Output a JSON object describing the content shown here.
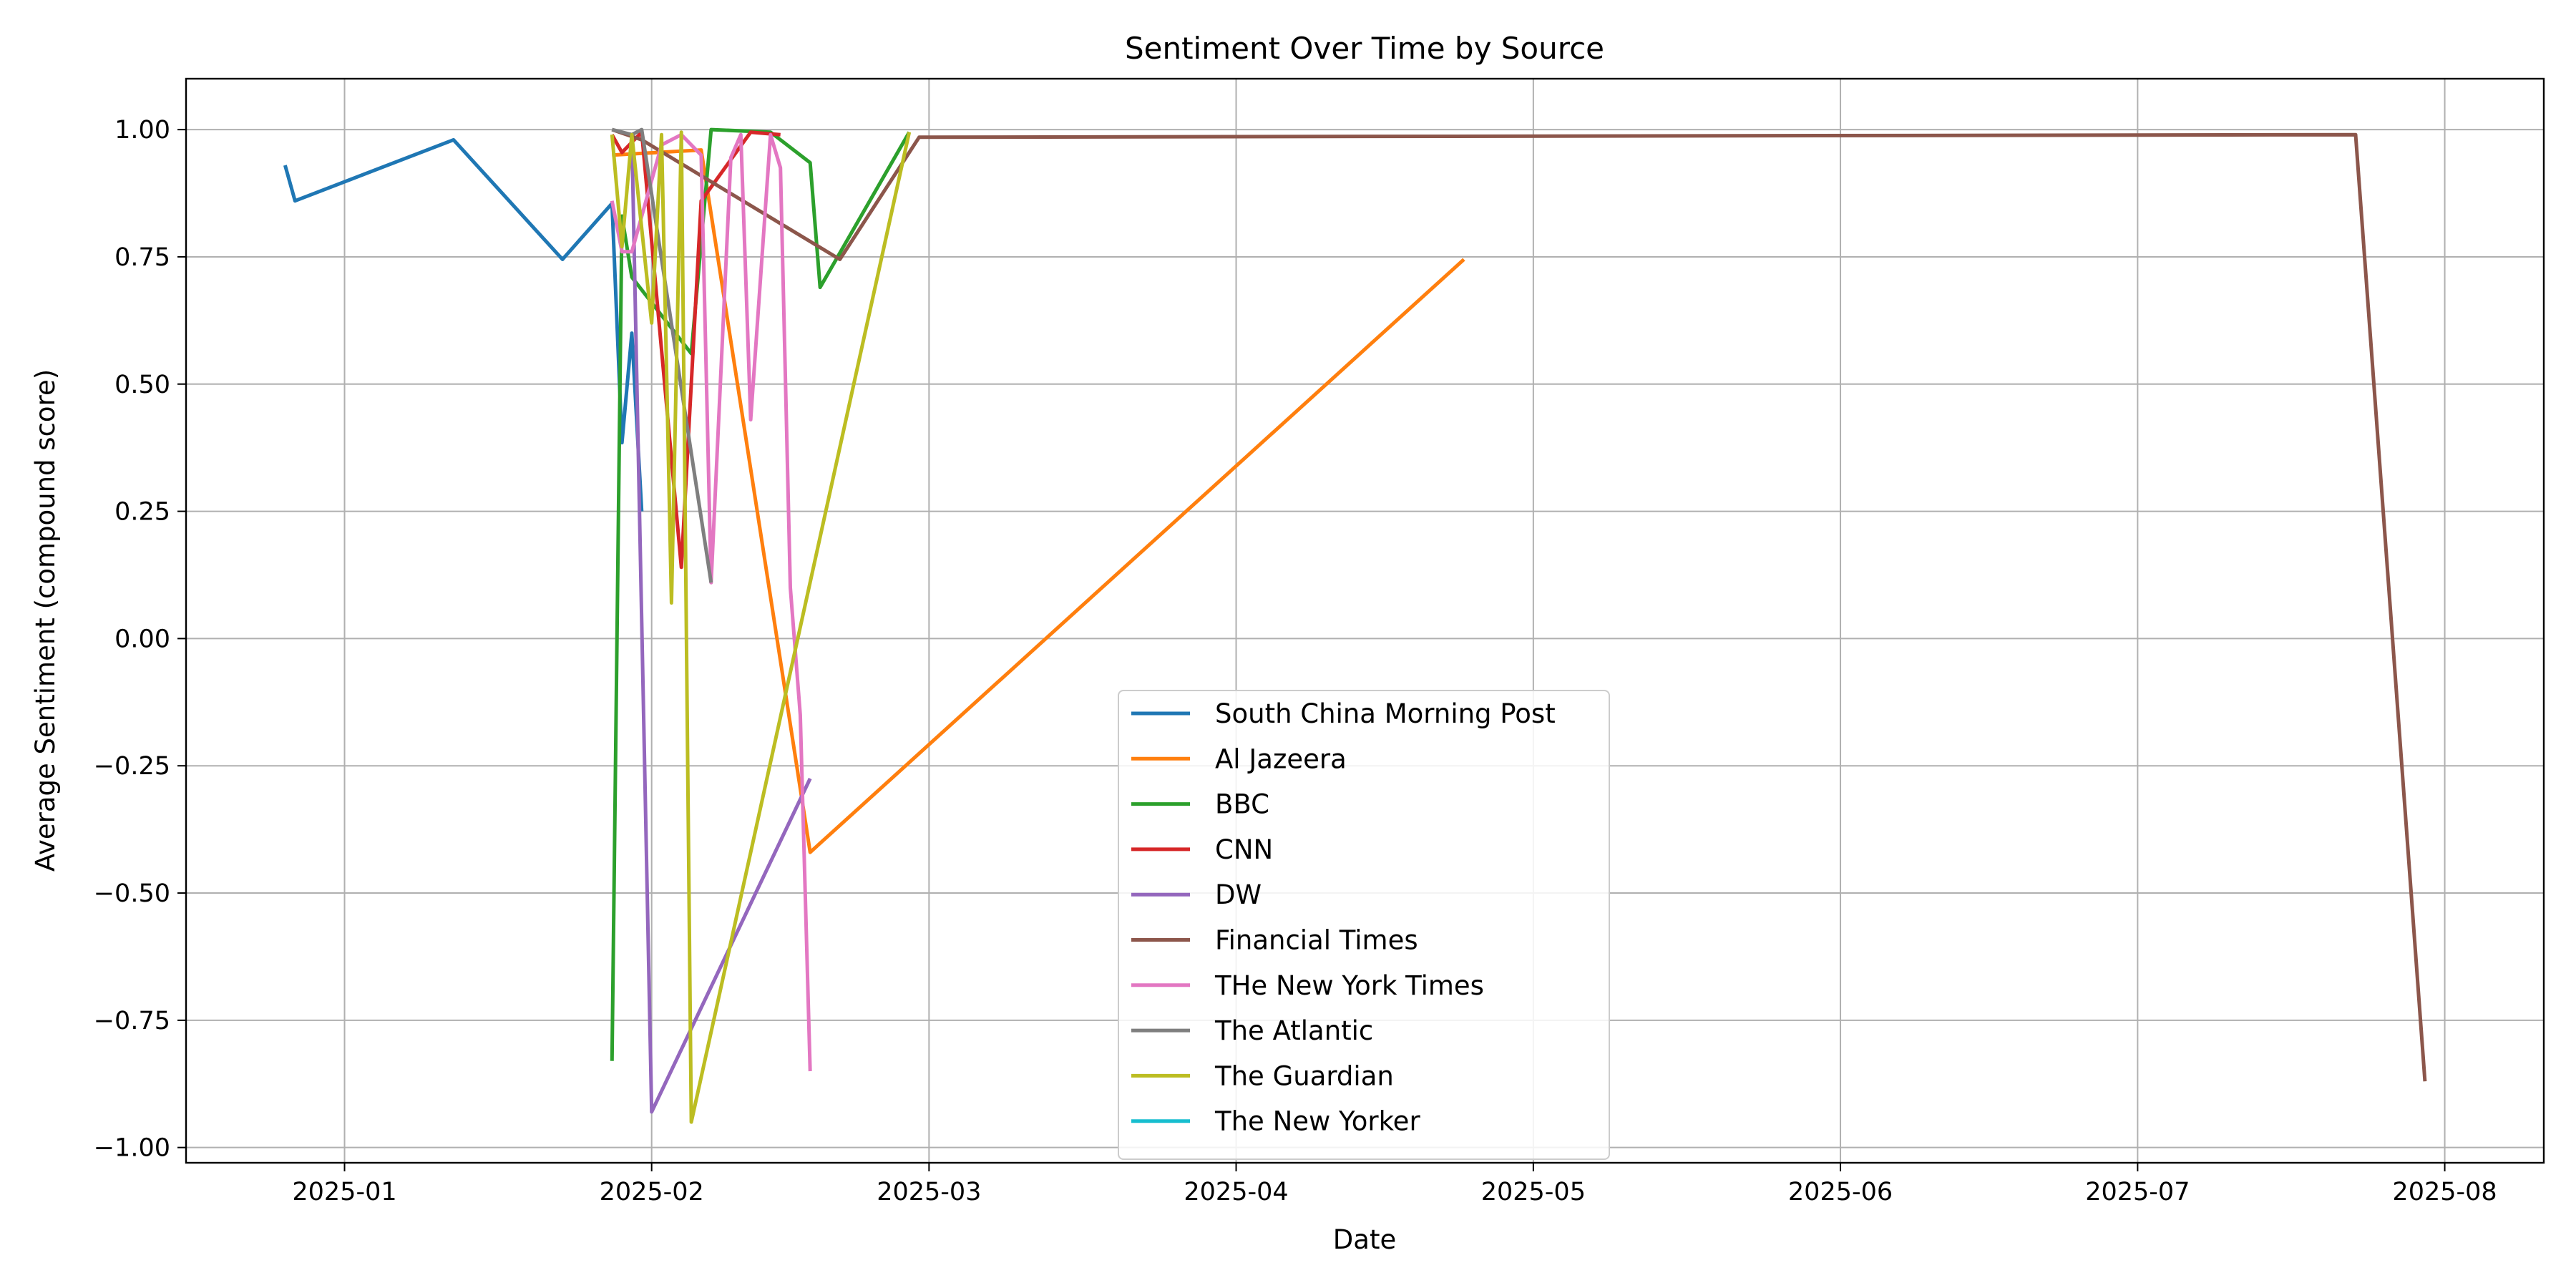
{
  "chart_data": {
    "type": "line",
    "title": "Sentiment Over Time by Source",
    "xlabel": "Date",
    "ylabel": "Average Sentiment (compound score)",
    "xlim": [
      "2024-12-16",
      "2025-08-11"
    ],
    "ylim": [
      -1.03,
      1.1
    ],
    "x_ticks": [
      "2025-01",
      "2025-02",
      "2025-03",
      "2025-04",
      "2025-05",
      "2025-06",
      "2025-07",
      "2025-08"
    ],
    "y_ticks": [
      "1.00",
      "0.75",
      "0.50",
      "0.25",
      "0.00",
      "−0.25",
      "−0.50",
      "−0.75",
      "−1.00"
    ],
    "grid": true,
    "legend_position": "lower-center",
    "series": [
      {
        "name": "South China Morning Post",
        "color": "#1f77b4",
        "x": [
          "2024-12-26",
          "2024-12-27",
          "2025-01-12",
          "2025-01-23",
          "2025-01-28",
          "2025-01-29",
          "2025-01-30",
          "2025-01-31"
        ],
        "y": [
          0.93,
          0.86,
          0.98,
          0.745,
          0.855,
          0.385,
          0.6,
          0.25
        ]
      },
      {
        "name": "Al Jazeera",
        "color": "#ff7f0e",
        "x": [
          "2025-01-28",
          "2025-02-06",
          "2025-02-17",
          "2025-04-24"
        ],
        "y": [
          0.95,
          0.96,
          -0.42,
          0.745
        ]
      },
      {
        "name": "BBC",
        "color": "#2ca02c",
        "x": [
          "2025-01-28",
          "2025-01-29",
          "2025-01-30",
          "2025-02-05",
          "2025-02-07",
          "2025-02-13",
          "2025-02-17",
          "2025-02-18",
          "2025-02-27"
        ],
        "y": [
          -0.83,
          0.83,
          0.71,
          0.56,
          1.0,
          0.995,
          0.935,
          0.69,
          0.995
        ]
      },
      {
        "name": "CNN",
        "color": "#d62728",
        "x": [
          "2025-01-28",
          "2025-01-29",
          "2025-01-31",
          "2025-02-04",
          "2025-02-06",
          "2025-02-11",
          "2025-02-14"
        ],
        "y": [
          0.99,
          0.955,
          0.995,
          0.14,
          0.86,
          0.995,
          0.99
        ]
      },
      {
        "name": "DW",
        "color": "#9467bd",
        "x": [
          "2025-01-30",
          "2025-02-01",
          "2025-02-17"
        ],
        "y": [
          0.99,
          -0.93,
          -0.275
        ]
      },
      {
        "name": "Financial Times",
        "color": "#8c564b",
        "x": [
          "2025-01-28",
          "2025-01-31",
          "2025-02-20",
          "2025-02-28",
          "2025-07-23",
          "2025-07-30"
        ],
        "y": [
          1.0,
          0.98,
          0.745,
          0.985,
          0.99,
          -0.87
        ]
      },
      {
        "name": "THe New York Times",
        "color": "#e377c2",
        "x": [
          "2025-01-28",
          "2025-01-29",
          "2025-01-30",
          "2025-02-02",
          "2025-02-04",
          "2025-02-06",
          "2025-02-07",
          "2025-02-09",
          "2025-02-10",
          "2025-02-11",
          "2025-02-13",
          "2025-02-14",
          "2025-02-15",
          "2025-02-16",
          "2025-02-17"
        ],
        "y": [
          0.86,
          0.76,
          0.76,
          0.97,
          0.99,
          0.95,
          0.11,
          0.945,
          0.99,
          0.43,
          0.99,
          0.925,
          0.1,
          -0.15,
          -0.85
        ]
      },
      {
        "name": "The Atlantic",
        "color": "#7f7f7f",
        "x": [
          "2025-01-28",
          "2025-01-30",
          "2025-01-31",
          "2025-02-07"
        ],
        "y": [
          1.0,
          0.99,
          1.0,
          0.11
        ]
      },
      {
        "name": "The Guardian",
        "color": "#bcbd22",
        "x": [
          "2025-01-28",
          "2025-01-29",
          "2025-01-30",
          "2025-02-01",
          "2025-02-02",
          "2025-02-03",
          "2025-02-04",
          "2025-02-05",
          "2025-02-27"
        ],
        "y": [
          0.99,
          0.77,
          0.99,
          0.62,
          0.99,
          0.07,
          0.995,
          -0.95,
          0.995
        ]
      },
      {
        "name": "The New Yorker",
        "color": "#17becf",
        "x": [],
        "y": []
      }
    ]
  }
}
